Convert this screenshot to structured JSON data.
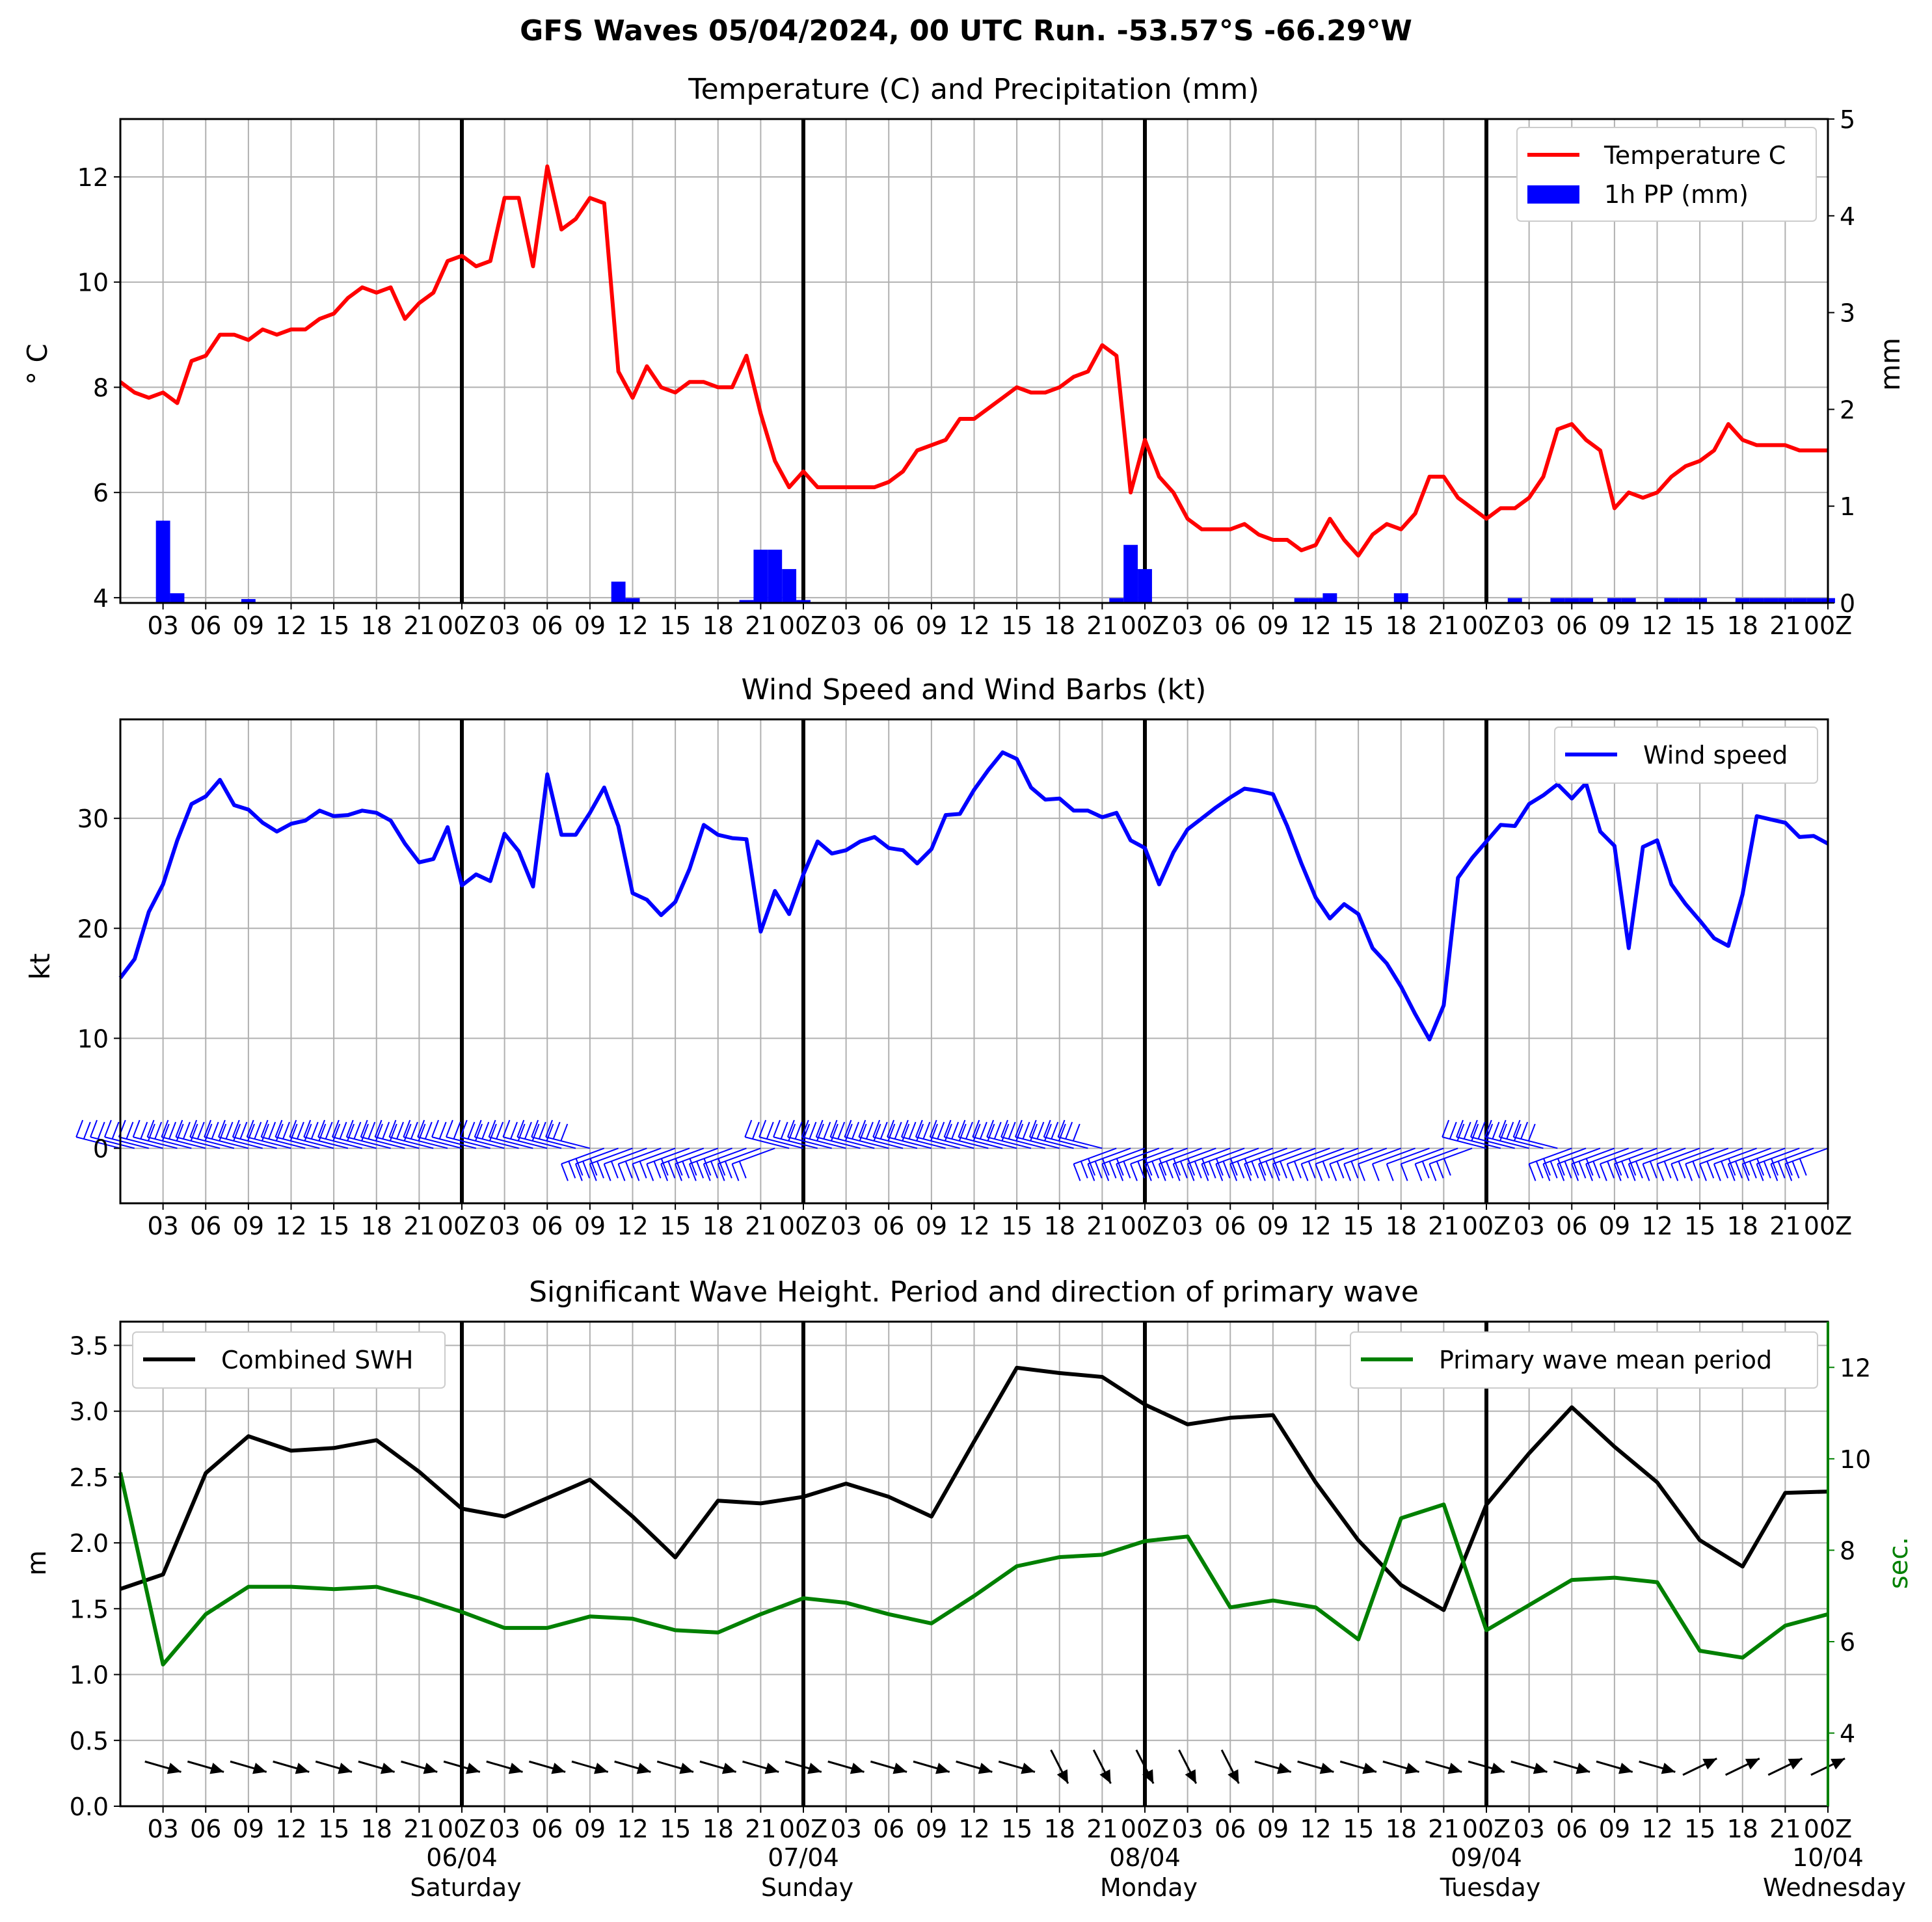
{
  "title": "GFS Waves 05/04/2024, 00 UTC Run. -53.57°S -66.29°W",
  "hour_tick_labels": [
    "03",
    "06",
    "09",
    "12",
    "15",
    "18",
    "21",
    "00Z",
    "03",
    "06",
    "09",
    "12",
    "15",
    "18",
    "21",
    "00Z",
    "03",
    "06",
    "09",
    "12",
    "15",
    "18",
    "21",
    "00Z",
    "03",
    "06",
    "09",
    "12",
    "15",
    "18",
    "21",
    "00Z",
    "03",
    "06",
    "09",
    "12",
    "15",
    "18",
    "21",
    "00Z"
  ],
  "day_labels": [
    {
      "date": "06/04",
      "weekday": "Saturday",
      "hour": 24
    },
    {
      "date": "07/04",
      "weekday": "Sunday",
      "hour": 48
    },
    {
      "date": "08/04",
      "weekday": "Monday",
      "hour": 72
    },
    {
      "date": "09/04",
      "weekday": "Tuesday",
      "hour": 96
    },
    {
      "date": "10/04",
      "weekday": "Wednesday",
      "hour": 120
    }
  ],
  "colors": {
    "temperature": "#ff0000",
    "precip": "#0000ff",
    "wind": "#0000ff",
    "swh": "#000000",
    "period": "#008000",
    "grid": "#b0b0b0"
  },
  "chart_data": [
    {
      "type": "line",
      "title": "Temperature (C) and Precipitation (mm)",
      "x_unit": "hours since 05/04/2024 00 UTC",
      "ylabel": "$^\\circ$C",
      "ylabel_display": "° C",
      "y2label": "mm",
      "xlim": [
        0,
        120
      ],
      "ylim": [
        3.9,
        13.1
      ],
      "y2lim": [
        0,
        5
      ],
      "yticks": [
        4,
        6,
        8,
        10,
        12
      ],
      "y2ticks": [
        0,
        1,
        2,
        3,
        4,
        5
      ],
      "legend": "top-right",
      "grid": true,
      "series": [
        {
          "name": "Temperature C",
          "type": "line",
          "x": [
            0,
            1,
            2,
            3,
            4,
            5,
            6,
            7,
            8,
            9,
            10,
            11,
            12,
            13,
            14,
            15,
            16,
            17,
            18,
            19,
            20,
            21,
            22,
            23,
            24,
            25,
            26,
            27,
            28,
            29,
            30,
            31,
            32,
            33,
            34,
            35,
            36,
            37,
            38,
            39,
            40,
            41,
            42,
            43,
            44,
            45,
            46,
            47,
            48,
            49,
            50,
            51,
            52,
            53,
            54,
            55,
            56,
            57,
            58,
            59,
            60,
            61,
            62,
            63,
            64,
            65,
            66,
            67,
            68,
            69,
            70,
            71,
            72,
            73,
            74,
            75,
            76,
            77,
            78,
            79,
            80,
            81,
            82,
            83,
            84,
            85,
            86,
            87,
            88,
            89,
            90,
            91,
            92,
            93,
            94,
            95,
            96,
            97,
            98,
            99,
            100,
            101,
            102,
            103,
            104,
            105,
            106,
            107,
            108,
            109,
            110,
            111,
            112,
            113,
            114,
            115,
            116,
            117,
            118,
            119,
            120
          ],
          "values": [
            8.1,
            7.9,
            7.8,
            7.9,
            7.7,
            8.5,
            8.6,
            9.0,
            9.0,
            8.9,
            9.1,
            9.0,
            9.1,
            9.1,
            9.3,
            9.4,
            9.7,
            9.9,
            9.8,
            9.9,
            9.3,
            9.6,
            9.8,
            10.4,
            10.5,
            10.3,
            10.4,
            11.6,
            11.6,
            10.3,
            12.2,
            11.0,
            11.2,
            11.6,
            11.5,
            8.3,
            7.8,
            8.4,
            8.0,
            7.9,
            8.1,
            8.1,
            8.0,
            8.0,
            8.6,
            7.5,
            6.6,
            6.1,
            6.4,
            6.1,
            6.1,
            6.1,
            6.1,
            6.1,
            6.2,
            6.4,
            6.8,
            6.9,
            7.0,
            7.4,
            7.4,
            7.6,
            7.8,
            8.0,
            7.9,
            7.9,
            8.0,
            8.2,
            8.3,
            8.8,
            8.6,
            6.0,
            7.0,
            6.3,
            6.0,
            5.5,
            5.3,
            5.3,
            5.3,
            5.4,
            5.2,
            5.1,
            5.1,
            4.9,
            5.0,
            5.5,
            5.1,
            4.8,
            5.2,
            5.4,
            5.3,
            5.6,
            6.3,
            6.3,
            5.9,
            5.7,
            5.5,
            5.7,
            5.7,
            5.9,
            6.3,
            7.2,
            7.3,
            7.0,
            6.8,
            5.7,
            6.0,
            5.9,
            6.0,
            6.3,
            6.5,
            6.6,
            6.8,
            7.3,
            7.0,
            6.9,
            6.9,
            6.9,
            6.8,
            6.8,
            6.8
          ]
        },
        {
          "name": "1h PP (mm)",
          "type": "bar",
          "axis": "right",
          "x": [
            3,
            4,
            9,
            35,
            36,
            44,
            45,
            46,
            47,
            48,
            70,
            71,
            72,
            83,
            84,
            85,
            90,
            98,
            101,
            102,
            103,
            105,
            106,
            109,
            110,
            111,
            114,
            115,
            116,
            117,
            118,
            119,
            120
          ],
          "values": [
            0.85,
            0.1,
            0.04,
            0.22,
            0.05,
            0.03,
            0.55,
            0.55,
            0.35,
            0.03,
            0.05,
            0.6,
            0.35,
            0.05,
            0.05,
            0.1,
            0.1,
            0.05,
            0.05,
            0.05,
            0.05,
            0.05,
            0.05,
            0.05,
            0.05,
            0.05,
            0.05,
            0.05,
            0.05,
            0.05,
            0.05,
            0.05,
            0.05
          ]
        }
      ]
    },
    {
      "type": "line",
      "title": "Wind Speed and Wind Barbs (kt)",
      "x_unit": "hours since 05/04/2024 00 UTC",
      "ylabel": "kt",
      "xlim": [
        0,
        120
      ],
      "ylim": [
        -5,
        39
      ],
      "yticks": [
        0,
        10,
        20,
        30
      ],
      "legend": "top-right",
      "grid": true,
      "series": [
        {
          "name": "Wind speed",
          "x": [
            0,
            1,
            2,
            3,
            4,
            5,
            6,
            7,
            8,
            9,
            10,
            11,
            12,
            13,
            14,
            15,
            16,
            17,
            18,
            19,
            20,
            21,
            22,
            23,
            24,
            25,
            26,
            27,
            28,
            29,
            30,
            31,
            32,
            33,
            34,
            35,
            36,
            37,
            38,
            39,
            40,
            41,
            42,
            43,
            44,
            45,
            46,
            47,
            48,
            49,
            50,
            51,
            52,
            53,
            54,
            55,
            56,
            57,
            58,
            59,
            60,
            61,
            62,
            63,
            64,
            65,
            66,
            67,
            68,
            69,
            70,
            71,
            72,
            73,
            74,
            75,
            76,
            77,
            78,
            79,
            80,
            81,
            82,
            83,
            84,
            85,
            86,
            87,
            88,
            89,
            90,
            91,
            92,
            93,
            94,
            95,
            96,
            97,
            98,
            99,
            100,
            101,
            102,
            103,
            104,
            105,
            106,
            107,
            108,
            109,
            110,
            111,
            112,
            113,
            114,
            115,
            116,
            117,
            118,
            119,
            120
          ],
          "values": [
            15.5,
            17.2,
            21.5,
            24,
            28,
            31.3,
            32,
            33.5,
            31.2,
            30.8,
            29.6,
            28.8,
            29.5,
            29.8,
            30.7,
            30.2,
            30.3,
            30.7,
            30.5,
            29.8,
            27.7,
            26,
            26.3,
            29.2,
            23.9,
            24.9,
            24.3,
            28.6,
            27,
            23.8,
            34,
            28.5,
            28.5,
            30.5,
            32.8,
            29.3,
            23.2,
            22.6,
            21.2,
            22.4,
            25.4,
            29.4,
            28.5,
            28.2,
            28.1,
            19.7,
            23.4,
            21.3,
            24.9,
            27.9,
            26.8,
            27.1,
            27.9,
            28.3,
            27.3,
            27.1,
            25.9,
            27.2,
            30.3,
            30.4,
            32.6,
            34.4,
            36,
            35.4,
            32.8,
            31.7,
            31.8,
            30.7,
            30.7,
            30.1,
            30.5,
            28,
            27.3,
            24,
            26.9,
            29,
            30,
            31,
            31.9,
            32.7,
            32.5,
            32.2,
            29.3,
            25.9,
            22.8,
            20.9,
            22.2,
            21.3,
            18.2,
            16.8,
            14.7,
            12.2,
            9.9,
            13,
            24.6,
            26.4,
            27.9,
            29.4,
            29.3,
            31.3,
            32.1,
            33.1,
            31.8,
            33.2,
            28.8,
            27.5,
            18.2,
            27.4,
            28,
            24,
            22.2,
            20.7,
            19.1,
            18.4,
            23.1,
            30.2,
            29.9,
            29.6,
            28.3,
            28.4,
            27.7
          ]
        },
        {
          "name": "barbs",
          "type": "barb",
          "x_step": 1,
          "count": 121
        }
      ]
    },
    {
      "type": "line",
      "title": "Significant Wave Height. Period and direction of primary wave",
      "x_unit": "hours since 05/04/2024 00 UTC",
      "ylabel": "m",
      "y2label": "sec.",
      "xlim": [
        0,
        120
      ],
      "ylim": [
        0,
        3.68
      ],
      "y2lim": [
        2.4,
        13
      ],
      "yticks": [
        0.0,
        0.5,
        1.0,
        1.5,
        2.0,
        2.5,
        3.0,
        3.5
      ],
      "y2ticks": [
        4,
        6,
        8,
        10,
        12
      ],
      "legend": "top-left (SWH), top-right (period)",
      "grid": true,
      "series": [
        {
          "name": "Combined SWH",
          "axis": "left",
          "x": [
            0,
            3,
            6,
            9,
            12,
            15,
            18,
            21,
            24,
            27,
            30,
            33,
            36,
            39,
            42,
            45,
            48,
            51,
            54,
            57,
            60,
            63,
            66,
            69,
            72,
            75,
            78,
            81,
            84,
            87,
            90,
            93,
            96,
            99,
            102,
            105,
            108,
            111,
            114,
            117,
            120
          ],
          "values": [
            1.65,
            1.76,
            2.53,
            2.81,
            2.7,
            2.72,
            2.78,
            2.54,
            2.26,
            2.2,
            2.34,
            2.48,
            2.2,
            1.89,
            2.32,
            2.3,
            2.35,
            2.45,
            2.35,
            2.2,
            2.77,
            3.33,
            3.29,
            3.26,
            3.05,
            2.9,
            2.95,
            2.97,
            2.46,
            2.02,
            1.68,
            1.49,
            2.29,
            2.68,
            3.03,
            2.73,
            2.46,
            2.02,
            1.82,
            2.38,
            2.39
          ]
        },
        {
          "name": "Primary wave mean period",
          "axis": "right",
          "x": [
            0,
            3,
            6,
            9,
            12,
            15,
            18,
            21,
            24,
            27,
            30,
            33,
            36,
            39,
            42,
            45,
            48,
            51,
            54,
            57,
            60,
            63,
            66,
            69,
            72,
            75,
            78,
            81,
            84,
            87,
            90,
            93,
            96,
            99,
            102,
            105,
            108,
            111,
            114,
            117,
            120
          ],
          "values": [
            9.7,
            5.5,
            6.6,
            7.2,
            7.2,
            7.15,
            7.2,
            6.95,
            6.65,
            6.3,
            6.3,
            6.55,
            6.5,
            6.25,
            6.2,
            6.6,
            6.95,
            6.85,
            6.6,
            6.4,
            7.0,
            7.65,
            7.85,
            7.9,
            8.2,
            8.3,
            6.75,
            6.9,
            6.75,
            6.05,
            8.7,
            9.0,
            6.25,
            6.8,
            7.35,
            7.4,
            7.3,
            5.8,
            5.65,
            6.35,
            6.6
          ]
        },
        {
          "name": "direction arrows",
          "type": "arrow",
          "x_step": 3,
          "count": 41
        }
      ]
    }
  ]
}
